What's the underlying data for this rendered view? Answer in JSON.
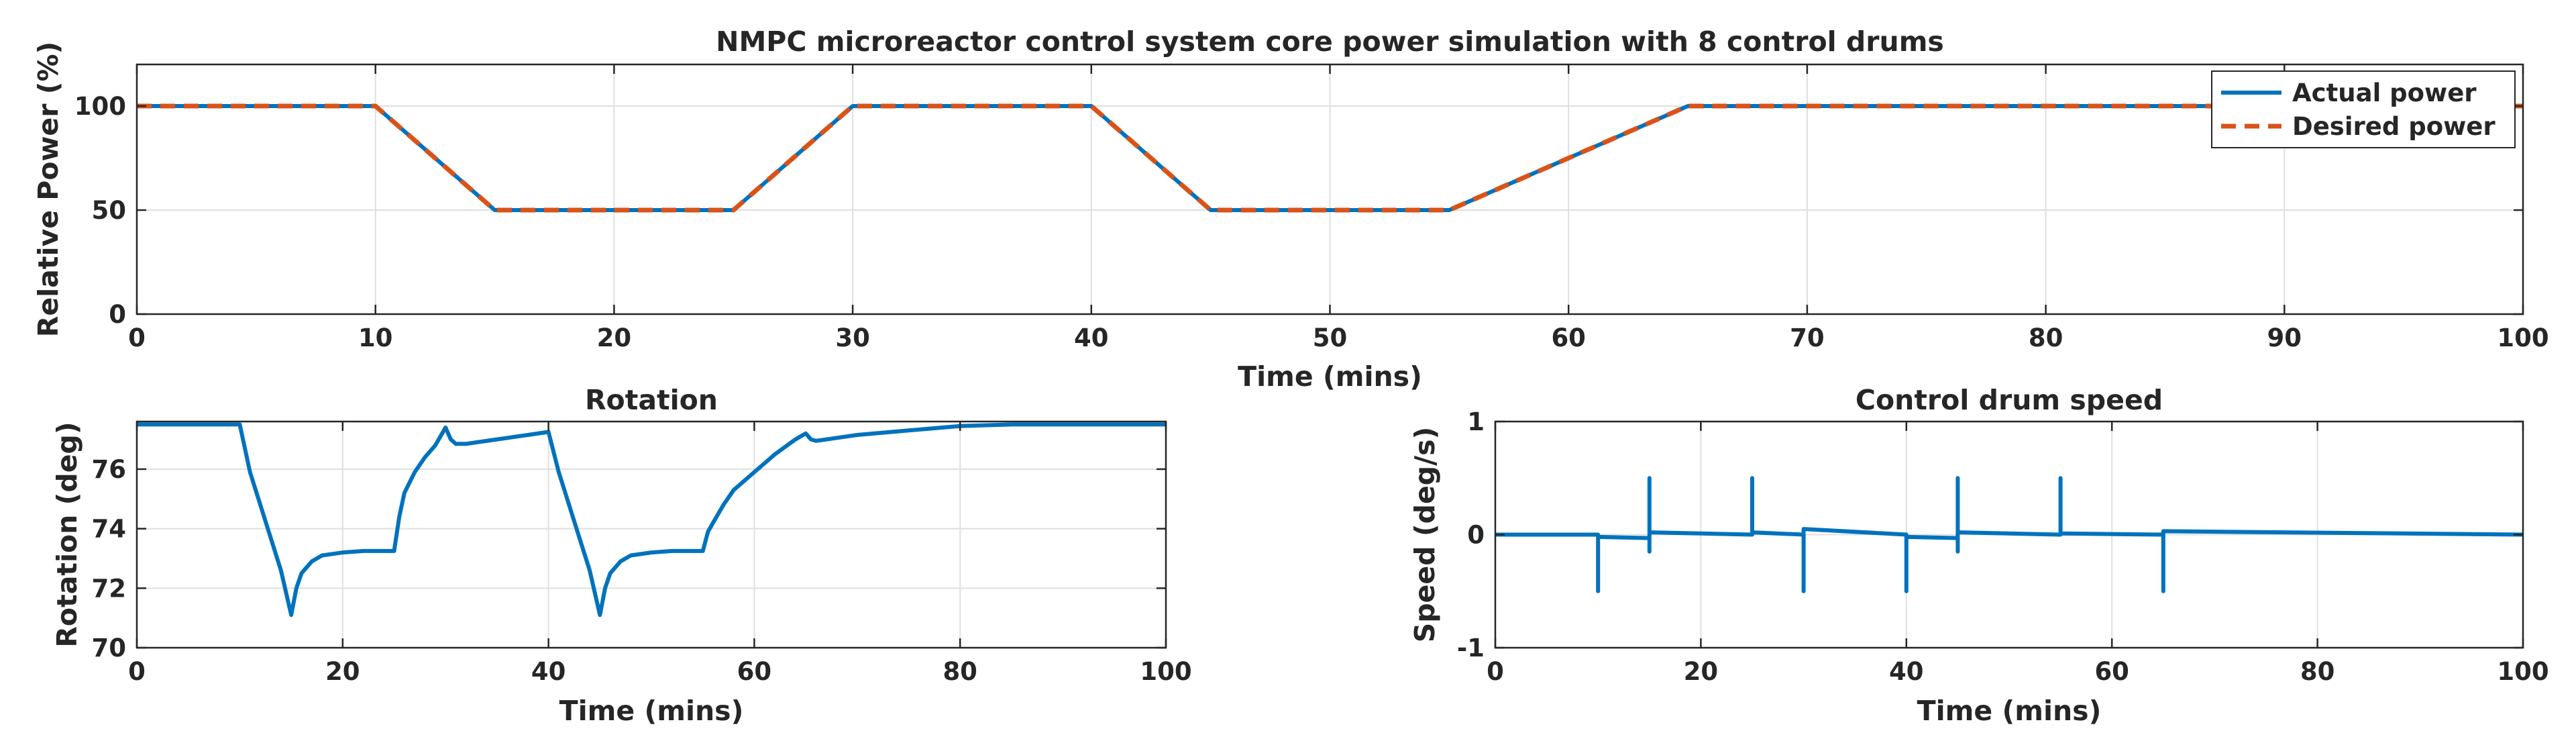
{
  "colors": {
    "actual": "#0072BD",
    "desired": "#D95319",
    "axis": "#262626",
    "grid": "#dfdfdf"
  },
  "chart_data": [
    {
      "id": "core-power",
      "type": "line",
      "title": "NMPC microreactor control system core power simulation with 8 control drums",
      "xlabel": "Time (mins)",
      "ylabel": "Relative Power (%)",
      "xlim": [
        0,
        100
      ],
      "ylim": [
        0,
        120
      ],
      "xticks": [
        0,
        10,
        20,
        30,
        40,
        50,
        60,
        70,
        80,
        90,
        100
      ],
      "yticks": [
        0,
        50,
        100
      ],
      "grid": true,
      "legend": "top-right",
      "series": [
        {
          "name": "Actual power",
          "style": "solid",
          "x": [
            0,
            10,
            15,
            25,
            30,
            40,
            45,
            55,
            65,
            100
          ],
          "y": [
            100,
            100,
            50,
            50,
            100,
            100,
            50,
            50,
            100,
            100
          ]
        },
        {
          "name": "Desired power",
          "style": "dashed",
          "x": [
            0,
            10,
            15,
            25,
            30,
            40,
            45,
            55,
            65,
            100
          ],
          "y": [
            100,
            100,
            50,
            50,
            100,
            100,
            50,
            50,
            100,
            100
          ]
        }
      ]
    },
    {
      "id": "rotation",
      "type": "line",
      "title": "Rotation",
      "xlabel": "Time (mins)",
      "ylabel": "Rotation (deg)",
      "xlim": [
        0,
        100
      ],
      "ylim": [
        70,
        77.6
      ],
      "xticks": [
        0,
        20,
        40,
        60,
        80,
        100
      ],
      "yticks": [
        70,
        72,
        74,
        76
      ],
      "grid": true,
      "series": [
        {
          "x": [
            0,
            10,
            11,
            12,
            13,
            14,
            15,
            15.5,
            16,
            17,
            18,
            19,
            20,
            22,
            25,
            25.5,
            26,
            27,
            28,
            29,
            30,
            30.5,
            31,
            32,
            33,
            35,
            38,
            40,
            41,
            42,
            43,
            44,
            45,
            45.5,
            46,
            47,
            48,
            50,
            52,
            55,
            55.5,
            56,
            57,
            58,
            60,
            62,
            64,
            65,
            65.5,
            66,
            67,
            70,
            75,
            80,
            85,
            90,
            100
          ],
          "y": [
            77.5,
            77.5,
            75.9,
            74.8,
            73.7,
            72.6,
            71.1,
            72.0,
            72.5,
            72.9,
            73.1,
            73.15,
            73.2,
            73.25,
            73.25,
            74.4,
            75.2,
            75.9,
            76.4,
            76.8,
            77.4,
            77.0,
            76.85,
            76.85,
            76.9,
            77.0,
            77.15,
            77.25,
            75.9,
            74.8,
            73.7,
            72.6,
            71.1,
            72.0,
            72.5,
            72.9,
            73.1,
            73.2,
            73.25,
            73.25,
            73.9,
            74.2,
            74.8,
            75.3,
            75.9,
            76.5,
            77.0,
            77.2,
            77.0,
            76.95,
            77.0,
            77.15,
            77.3,
            77.45,
            77.5,
            77.5,
            77.5
          ]
        }
      ]
    },
    {
      "id": "drum-speed",
      "type": "line",
      "title": "Control drum speed",
      "xlabel": "Time (mins)",
      "ylabel": "Speed (deg/s)",
      "xlim": [
        0,
        100
      ],
      "ylim": [
        -1,
        1
      ],
      "xticks": [
        0,
        20,
        40,
        60,
        80,
        100
      ],
      "yticks": [
        -1,
        0,
        1
      ],
      "grid": true,
      "series": [
        {
          "x": [
            0,
            10,
            10,
            10,
            15,
            15,
            15,
            15,
            25,
            25,
            25,
            30,
            30,
            30,
            40,
            40,
            40,
            45,
            45,
            45,
            45,
            55,
            55,
            55,
            65,
            65,
            65,
            100
          ],
          "y": [
            0,
            0,
            -0.5,
            -0.02,
            -0.03,
            -0.15,
            0.5,
            0.02,
            0,
            0.5,
            0.02,
            0,
            -0.5,
            0.05,
            0,
            -0.5,
            -0.02,
            -0.03,
            -0.15,
            0.5,
            0.02,
            0,
            0.5,
            0.01,
            0,
            -0.5,
            0.03,
            0
          ]
        }
      ]
    }
  ]
}
